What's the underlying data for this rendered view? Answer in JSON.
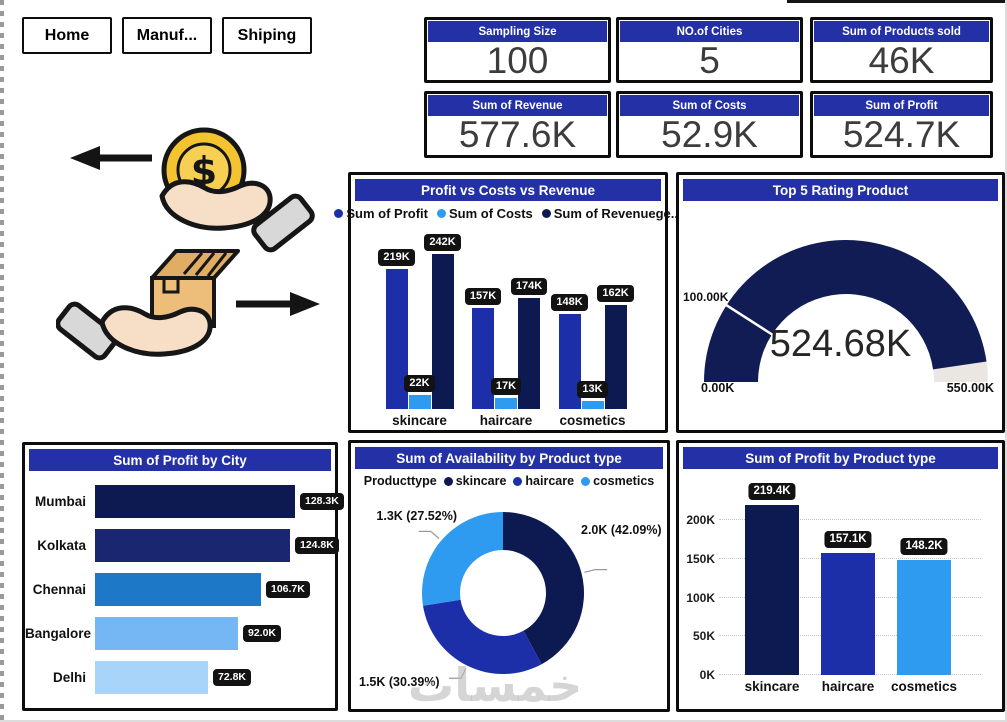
{
  "page": {
    "watermark": "خمسات",
    "header_color": "#2430A6",
    "label_pill_color": "#121212"
  },
  "nav": {
    "buttons": [
      {
        "label": "Home"
      },
      {
        "label": "Manuf..."
      },
      {
        "label": "Shiping"
      }
    ]
  },
  "kpi_cards": [
    {
      "title": "Sampling Size",
      "value": "100"
    },
    {
      "title": "NO.of Cities",
      "value": "5"
    },
    {
      "title": "Sum of Products sold",
      "value": "46K"
    },
    {
      "title": "Sum of Revenue",
      "value": "577.6K"
    },
    {
      "title": "Sum of Costs",
      "value": "52.9K"
    },
    {
      "title": "Sum of Profit",
      "value": "524.7K"
    }
  ],
  "illustration": {
    "name": "hands-exchanging-money-and-product"
  },
  "chart_data": [
    {
      "id": "profit-costs-revenue",
      "type": "bar",
      "title": "Profit vs Costs vs Revenue",
      "categories": [
        "skincare",
        "haircare",
        "cosmetics"
      ],
      "series": [
        {
          "name": "Sum of Profit",
          "color": "#1C2FA8",
          "values": [
            219,
            157,
            148
          ],
          "labels": [
            "219K",
            "157K",
            "148K"
          ]
        },
        {
          "name": "Sum of Costs",
          "color": "#2E9BF0",
          "values": [
            22,
            17,
            13
          ],
          "labels": [
            "22K",
            "17K",
            "13K"
          ]
        },
        {
          "name": "Sum of Revenuege...",
          "color": "#0D1A52",
          "values": [
            242,
            174,
            162
          ],
          "labels": [
            "242K",
            "174K",
            "162K"
          ]
        }
      ],
      "ylim": [
        0,
        242
      ],
      "legend_position": "top",
      "grid": false
    },
    {
      "id": "top5-rating-gauge",
      "type": "gauge",
      "title": "Top 5 Rating Product",
      "value": 524.68,
      "value_label": "524.68K",
      "min": 0,
      "max": 550,
      "min_label": "0.00K",
      "max_label": "550.00K",
      "target": 100,
      "target_label": "100.00K",
      "fill_color": "#111C54",
      "track_color": "#EAE7E3"
    },
    {
      "id": "profit-by-city",
      "type": "bar-horizontal",
      "title": "Sum of Profit by City",
      "categories": [
        "Mumbai",
        "Kolkata",
        "Chennai",
        "Bangalore",
        "Delhi"
      ],
      "values": [
        128.3,
        124.8,
        106.7,
        92.0,
        72.8
      ],
      "labels": [
        "128.3K",
        "124.8K",
        "106.7K",
        "92.0K",
        "72.8K"
      ],
      "colors": [
        "#0D1A52",
        "#1A2670",
        "#1E78C8",
        "#74B7F4",
        "#A9D4FA"
      ],
      "xlim": [
        0,
        128.3
      ]
    },
    {
      "id": "availability-by-product-type",
      "type": "pie",
      "title": "Sum of Availability by Product type",
      "legend_title": "Producttype",
      "donut": true,
      "slices": [
        {
          "name": "skincare",
          "value": 2.0,
          "pct": 42.09,
          "label": "2.0K (42.09%)",
          "color": "#0D1A52"
        },
        {
          "name": "haircare",
          "value": 1.5,
          "pct": 30.39,
          "label": "1.5K (30.39%)",
          "color": "#1C2FA8"
        },
        {
          "name": "cosmetics",
          "value": 1.3,
          "pct": 27.52,
          "label": "1.3K (27.52%)",
          "color": "#2E9BF0"
        }
      ]
    },
    {
      "id": "profit-by-product-type",
      "type": "bar",
      "title": "Sum of Profit by Product type",
      "categories": [
        "skincare",
        "haircare",
        "cosmetics"
      ],
      "values": [
        219.4,
        157.1,
        148.2
      ],
      "labels": [
        "219.4K",
        "157.1K",
        "148.2K"
      ],
      "colors": [
        "#0D1A52",
        "#1C2FA8",
        "#2E9BF0"
      ],
      "yticks": [
        {
          "v": 0,
          "label": "0K"
        },
        {
          "v": 50,
          "label": "50K"
        },
        {
          "v": 100,
          "label": "100K"
        },
        {
          "v": 150,
          "label": "150K"
        },
        {
          "v": 200,
          "label": "200K"
        }
      ],
      "ylim": [
        0,
        230
      ],
      "grid": "dotted"
    }
  ]
}
